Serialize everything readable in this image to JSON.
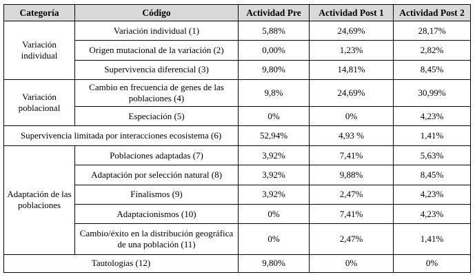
{
  "headers": [
    "Categoría",
    "Código",
    "Actividad Pre",
    "Actividad Post 1",
    "Actividad Post 2"
  ],
  "groups": [
    {
      "category": "Variación individual",
      "rows": [
        {
          "code": "Variación individual (1)",
          "pre": "5,88%",
          "post1": "24,69%",
          "post2": "28,17%"
        },
        {
          "code": "Origen mutacional de la variación (2)",
          "pre": "0,00%",
          "post1": "1,23%",
          "post2": "2,82%"
        },
        {
          "code": "Supervivencia diferencial (3)",
          "pre": "9,80%",
          "post1": "14,81%",
          "post2": "8,45%"
        }
      ]
    },
    {
      "category": "Variación poblacional",
      "rows": [
        {
          "code": "Cambio en frecuencia de genes de las poblaciones (4)",
          "pre": "9,8%",
          "post1": "24,69%",
          "post2": "30,99%"
        },
        {
          "code": "Especiación (5)",
          "pre": "0%",
          "post1": "0%",
          "post2": "4,23%"
        }
      ]
    }
  ],
  "span_row": {
    "label": "Supervivencia limitada por interacciones ecosistema (6)",
    "pre": "52,94%",
    "post1": "4,93 %",
    "post2": "1,41%"
  },
  "group3": {
    "category": "Adaptación de las poblaciones",
    "rows": [
      {
        "code": "Poblaciones adaptadas (7)",
        "pre": "3,92%",
        "post1": "7,41%",
        "post2": "5,63%"
      },
      {
        "code": "Adaptación por selección natural (8)",
        "pre": "3,92%",
        "post1": "9,88%",
        "post2": "8,45%"
      },
      {
        "code": "Finalismos (9)",
        "pre": "3,92%",
        "post1": "2,47%",
        "post2": "4,23%"
      },
      {
        "code": "Adaptacionismos (10)",
        "pre": "0%",
        "post1": "7,41%",
        "post2": "4,23%"
      },
      {
        "code": "Cambio/éxito en la distribución geográfica de una población (11)",
        "pre": "0%",
        "post1": "2,47%",
        "post2": "1,41%"
      }
    ]
  },
  "last_row": {
    "label": "Tautologias (12)",
    "pre": "9,80%",
    "post1": "0%",
    "post2": "0%"
  }
}
